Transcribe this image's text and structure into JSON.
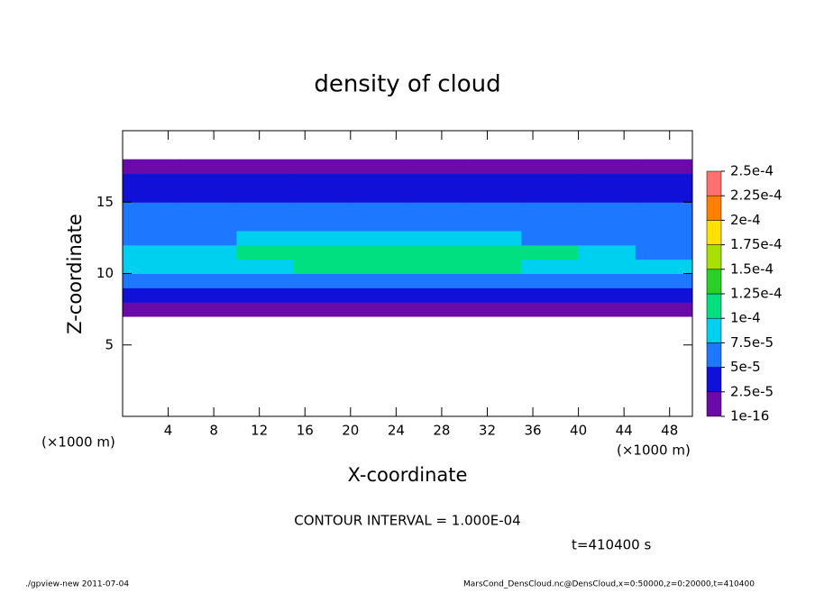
{
  "chart_data": {
    "type": "heatmap",
    "title": "density of cloud",
    "x_label": "X-coordinate",
    "y_label": "Z-coordinate",
    "x_unit": "(×1000 m)",
    "y_unit": "(×1000 m)",
    "contour_note": "CONTOUR INTERVAL = 1.000E-04",
    "time_note": "t=410400 s",
    "footer_left": "./gpview-new  2011-07-04",
    "footer_right": "MarsCond_DensCloud.nc@DensCloud,x=0:50000,z=0:20000,t=410400",
    "xlim": [
      0,
      50
    ],
    "ylim": [
      0,
      20
    ],
    "xticks": [
      4,
      8,
      12,
      16,
      20,
      24,
      28,
      32,
      36,
      40,
      44,
      48
    ],
    "yticks": [
      5,
      10,
      15
    ],
    "x": [
      2.5,
      7.5,
      12.5,
      17.5,
      22.5,
      27.5,
      32.5,
      37.5,
      42.5,
      47.5
    ],
    "z": [
      7.5,
      8.5,
      9.5,
      10.5,
      11.5,
      12.5,
      13.5,
      14.5,
      15.5,
      16.5,
      17.5
    ],
    "values": [
      [
        1e-06,
        1e-06,
        1e-06,
        1e-06,
        1e-06,
        1e-06,
        1e-06,
        1e-06,
        1e-06,
        1e-06
      ],
      [
        3e-05,
        3e-05,
        3e-05,
        3e-05,
        3e-05,
        3e-05,
        3e-05,
        3e-05,
        3e-05,
        3e-05
      ],
      [
        6e-05,
        6.5e-05,
        6.5e-05,
        7e-05,
        7e-05,
        7e-05,
        7e-05,
        6.5e-05,
        6.5e-05,
        6e-05
      ],
      [
        8e-05,
        9e-05,
        9.5e-05,
        0.000105,
        0.00011,
        0.000105,
        0.0001,
        9.5e-05,
        9e-05,
        7.5e-05
      ],
      [
        7.5e-05,
        9e-05,
        0.000105,
        0.00011,
        0.000115,
        0.00011,
        0.000105,
        0.0001,
        9e-05,
        7e-05
      ],
      [
        6e-05,
        7e-05,
        8e-05,
        9e-05,
        8.5e-05,
        8e-05,
        7.5e-05,
        7e-05,
        6.5e-05,
        6e-05
      ],
      [
        5.5e-05,
        6e-05,
        6.5e-05,
        6.5e-05,
        6e-05,
        6e-05,
        6e-05,
        5.5e-05,
        5.5e-05,
        5.5e-05
      ],
      [
        5e-05,
        5.5e-05,
        5.5e-05,
        5.5e-05,
        5.5e-05,
        5.5e-05,
        5.5e-05,
        5e-05,
        5e-05,
        5e-05
      ],
      [
        3.5e-05,
        4e-05,
        4e-05,
        4e-05,
        4e-05,
        4e-05,
        4e-05,
        4e-05,
        4e-05,
        3.5e-05
      ],
      [
        2.7e-05,
        2.7e-05,
        2.7e-05,
        2.7e-05,
        2.7e-05,
        2.7e-05,
        2.7e-05,
        2.7e-05,
        2.7e-05,
        2.7e-05
      ],
      [
        5e-06,
        5e-06,
        5e-06,
        5e-06,
        5e-06,
        5e-06,
        5e-06,
        5e-06,
        5e-06,
        5e-06
      ]
    ],
    "levels": [
      1e-16,
      {
        "value": 2.5e-05,
        "label": "2.5e-5"
      },
      {
        "value": 5e-05,
        "label": "5e-5"
      },
      {
        "value": 7.5e-05,
        "label": "7.5e-5"
      },
      {
        "value": 0.0001,
        "label": "1e-4"
      },
      {
        "value": 0.000125,
        "label": "1.25e-4"
      },
      {
        "value": 0.00015,
        "label": "1.5e-4"
      },
      {
        "value": 0.000175,
        "label": "1.75e-4"
      },
      {
        "value": 0.0002,
        "label": "2e-4"
      },
      {
        "value": 0.000225,
        "label": "2.25e-4"
      },
      {
        "value": 0.00025,
        "label": "2.5e-4"
      }
    ],
    "colors": [
      "#6a0aa8",
      "#1010d8",
      "#1e78ff",
      "#00d0f0",
      "#00e080",
      "#28d028",
      "#a8e000",
      "#ffe000",
      "#ff8000",
      "#ff7070"
    ]
  }
}
